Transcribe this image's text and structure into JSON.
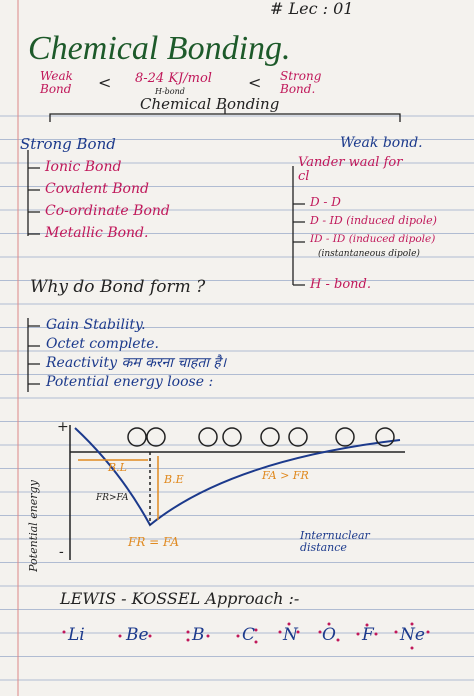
{
  "header": {
    "lecture": "# Lec : 01"
  },
  "title": "Chemical Bonding.",
  "comparison": {
    "weak": "Weak Bond",
    "lt1": "<",
    "energy": "8-24 KJ/mol",
    "hbond": "H-bond",
    "lt2": "<",
    "strong": "Strong Bond."
  },
  "subtitle": "Chemical Bonding",
  "strong": {
    "heading": "Strong Bond",
    "items": [
      "Ionic Bond",
      "Covalent Bond",
      "Co-ordinate Bond",
      "Metallic Bond."
    ]
  },
  "weak": {
    "heading": "Weak bond.",
    "vander": "Vander waal for cl",
    "items": [
      "D - D",
      "D - ID (induced dipole)",
      "ID - ID (induced dipole)",
      "(instantaneous dipole)",
      "H - bond."
    ]
  },
  "question": "Why do Bond form ?",
  "answers": [
    "Gain Stability.",
    "Octet complete.",
    "Reactivity कम करना चाहता है।",
    "Potential energy loose :"
  ],
  "graph": {
    "plus": "+",
    "minus": "-",
    "bl": "B.L",
    "be": "B.E",
    "left": "FR>FA",
    "right": "FA > FR",
    "min": "FR = FA",
    "ylabel": "Potential energy",
    "xlabel": "Internuclear distance"
  },
  "lewis": {
    "heading": "LEWIS - KOSSEL Approach :-",
    "elements": [
      "Li",
      "Be",
      "B",
      "C",
      "N",
      "O",
      "F",
      "Ne"
    ]
  }
}
